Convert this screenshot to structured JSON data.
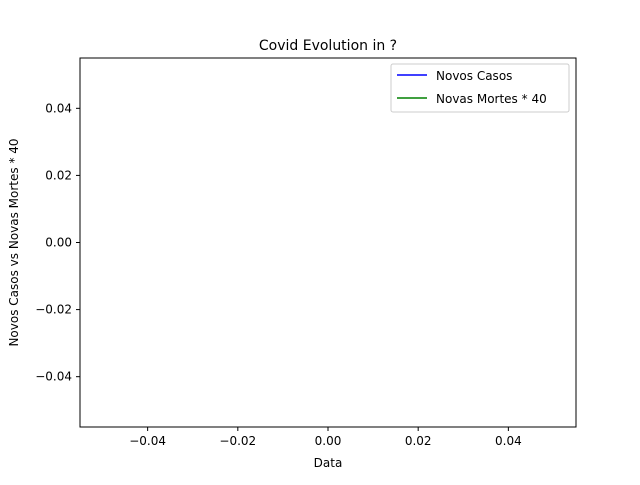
{
  "chart_data": {
    "type": "line",
    "title": "Covid Evolution in ?",
    "xlabel": "Data",
    "ylabel": "Novos Casos vs Novas Mortes * 40",
    "xlim": [
      -0.055,
      0.055
    ],
    "ylim": [
      -0.055,
      0.055
    ],
    "x_ticks": [
      -0.04,
      -0.02,
      0.0,
      0.02,
      0.04
    ],
    "x_tick_labels": [
      "−0.04",
      "−0.02",
      "0.00",
      "0.02",
      "0.04"
    ],
    "y_ticks": [
      -0.04,
      -0.02,
      0.0,
      0.02,
      0.04
    ],
    "y_tick_labels": [
      "−0.04",
      "−0.02",
      "0.00",
      "0.02",
      "0.04"
    ],
    "grid": false,
    "legend_position": "top-right",
    "series": [
      {
        "name": "Novos Casos",
        "color": "#0000ff",
        "x": [],
        "y": []
      },
      {
        "name": "Novas Mortes * 40",
        "color": "#008000",
        "x": [],
        "y": []
      }
    ]
  }
}
